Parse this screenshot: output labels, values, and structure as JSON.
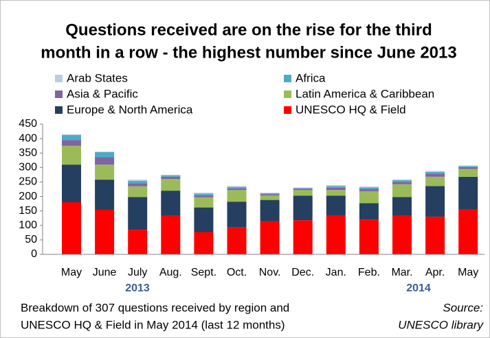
{
  "chart_data": {
    "type": "stacked_bar",
    "title": [
      "Questions received are on the rise for the third",
      "month in a row - the highest number since June 2013"
    ],
    "categories": [
      "May",
      "June",
      "July",
      "Aug.",
      "Sept.",
      "Oct.",
      "Nov.",
      "Dec.",
      "Jan.",
      "Feb.",
      "Mar.",
      "Apr.",
      "May"
    ],
    "year_labels": [
      "2013",
      "2014"
    ],
    "series": [
      {
        "name": "UNESCO HQ & Field",
        "color": "#ff0000",
        "values": [
          180,
          154,
          85,
          135,
          77,
          93,
          115,
          118,
          133,
          120,
          135,
          130,
          155
        ]
      },
      {
        "name": "Europe & North America",
        "color": "#243f60",
        "values": [
          130,
          104,
          113,
          85,
          85,
          89,
          73,
          85,
          70,
          57,
          63,
          106,
          113
        ]
      },
      {
        "name": "Latin America & Caribbean",
        "color": "#9bbb59",
        "values": [
          65,
          52,
          37,
          40,
          35,
          40,
          15,
          19,
          19,
          41,
          44,
          32,
          27
        ]
      },
      {
        "name": "Asia & Pacific",
        "color": "#8064a2",
        "values": [
          20,
          26,
          10,
          8,
          7,
          6,
          5,
          5,
          8,
          8,
          8,
          11,
          6
        ]
      },
      {
        "name": "Africa",
        "color": "#4bacc6",
        "values": [
          17,
          17,
          9,
          5,
          6,
          5,
          3,
          2,
          6,
          5,
          6,
          6,
          4
        ]
      },
      {
        "name": "Arab States",
        "color": "#b9cde5",
        "values": [
          3,
          2,
          4,
          2,
          3,
          3,
          2,
          2,
          3,
          3,
          3,
          3,
          2
        ]
      }
    ],
    "ylim": [
      0,
      450
    ],
    "yticks": [
      0,
      50,
      100,
      150,
      200,
      250,
      300,
      350,
      400,
      450
    ],
    "grid": false,
    "note": [
      "Breakdown of 307 questions received by region and",
      "UNESCO HQ & Field in May 2014 (last 12 months)"
    ],
    "source": [
      "Source:",
      "UNESCO library"
    ]
  }
}
